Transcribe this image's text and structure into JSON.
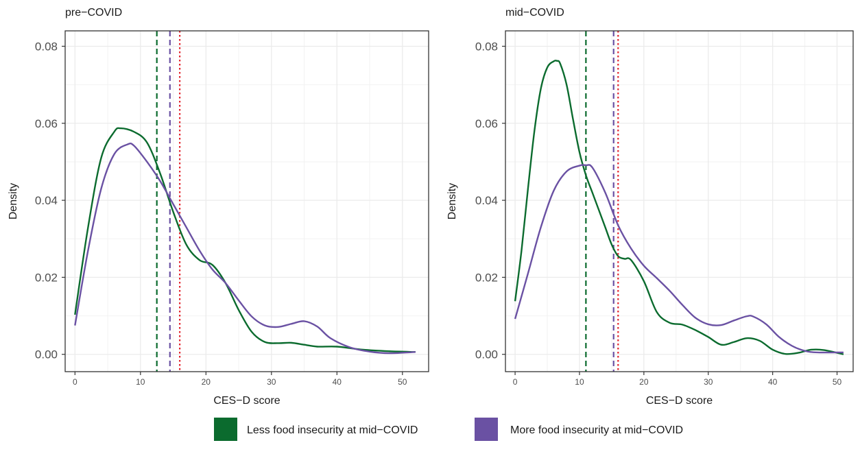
{
  "chart_data": [
    {
      "type": "line",
      "title": "pre−COVID",
      "xlabel": "CES−D score",
      "ylabel": "Density",
      "xlim": [
        -1.5,
        54
      ],
      "ylim": [
        -0.0045,
        0.084
      ],
      "xticks": [
        0,
        10,
        20,
        30,
        40,
        50
      ],
      "xtick_labels": [
        "0",
        "10",
        "20",
        "30",
        "40",
        "50"
      ],
      "yticks": [
        0,
        0.02,
        0.04,
        0.06,
        0.08
      ],
      "ytick_labels": [
        "0.00",
        "0.02",
        "0.04",
        "0.06",
        "0.08"
      ],
      "grid": true,
      "series": [
        {
          "name": "Less food insecurity at mid−COVID",
          "color": "#0b6b2e",
          "x": [
            0,
            2,
            4,
            6,
            7,
            9,
            11,
            13,
            15,
            17,
            19,
            21,
            23,
            25,
            27,
            29,
            31,
            33,
            35,
            37,
            40,
            44,
            48,
            52
          ],
          "y": [
            0.0103,
            0.033,
            0.051,
            0.0578,
            0.0587,
            0.0578,
            0.055,
            0.047,
            0.037,
            0.0285,
            0.0245,
            0.0232,
            0.0185,
            0.0115,
            0.0058,
            0.0032,
            0.0029,
            0.003,
            0.0025,
            0.002,
            0.002,
            0.0012,
            0.0008,
            0.0006
          ]
        },
        {
          "name": "More food insecurity at mid−COVID",
          "color": "#6a51a3",
          "x": [
            0,
            2,
            4,
            6,
            8,
            9,
            11,
            13,
            15,
            17,
            19,
            21,
            23,
            25,
            27,
            29,
            31,
            33,
            35,
            37,
            39,
            42,
            45,
            48,
            52
          ],
          "y": [
            0.0075,
            0.027,
            0.043,
            0.052,
            0.0545,
            0.0542,
            0.05,
            0.045,
            0.039,
            0.033,
            0.027,
            0.022,
            0.0185,
            0.014,
            0.0098,
            0.0075,
            0.0071,
            0.0079,
            0.0086,
            0.0072,
            0.0042,
            0.0018,
            0.0007,
            0.0003,
            0.0006
          ]
        }
      ],
      "vlines": [
        {
          "x": 12.5,
          "color": "#0b6b2e",
          "style": "dashed"
        },
        {
          "x": 14.5,
          "color": "#6a51a3",
          "style": "dashed"
        },
        {
          "x": 16,
          "color": "#e3232c",
          "style": "dotted"
        }
      ]
    },
    {
      "type": "line",
      "title": "mid−COVID",
      "xlabel": "CES−D score",
      "ylabel": "Density",
      "xlim": [
        -1.5,
        52.5
      ],
      "ylim": [
        -0.0045,
        0.084
      ],
      "xticks": [
        0,
        10,
        20,
        30,
        40,
        50
      ],
      "xtick_labels": [
        "0",
        "10",
        "20",
        "30",
        "40",
        "50"
      ],
      "yticks": [
        0,
        0.02,
        0.04,
        0.06,
        0.08
      ],
      "ytick_labels": [
        "0.00",
        "0.02",
        "0.04",
        "0.06",
        "0.08"
      ],
      "grid": true,
      "series": [
        {
          "name": "Less food insecurity at mid−COVID",
          "color": "#0b6b2e",
          "x": [
            0,
            1,
            2,
            3,
            4,
            5,
            6,
            6.5,
            7,
            8,
            9,
            10,
            11,
            12,
            13,
            14,
            15,
            16,
            17,
            18,
            20,
            22,
            24,
            26,
            28,
            30,
            32,
            34,
            36,
            38,
            40,
            42,
            44,
            46,
            48,
            51
          ],
          "y": [
            0.0138,
            0.027,
            0.043,
            0.058,
            0.069,
            0.0745,
            0.0761,
            0.0762,
            0.0755,
            0.07,
            0.061,
            0.0525,
            0.0465,
            0.042,
            0.0375,
            0.033,
            0.0285,
            0.0255,
            0.0248,
            0.0245,
            0.019,
            0.011,
            0.0082,
            0.0077,
            0.0063,
            0.0045,
            0.0025,
            0.0032,
            0.0042,
            0.0035,
            0.0012,
            0.0001,
            0.0004,
            0.0012,
            0.0011,
            0.0
          ]
        },
        {
          "name": "More food insecurity at mid−COVID",
          "color": "#6a51a3",
          "x": [
            0,
            2,
            4,
            6,
            8,
            10,
            11,
            12,
            14,
            16,
            18,
            20,
            22,
            24,
            26,
            28,
            30,
            32,
            34,
            36,
            37,
            39,
            41,
            43,
            45,
            47,
            51
          ],
          "y": [
            0.0092,
            0.021,
            0.033,
            0.0425,
            0.0475,
            0.049,
            0.0491,
            0.0485,
            0.042,
            0.0335,
            0.0275,
            0.023,
            0.0198,
            0.0165,
            0.0128,
            0.0095,
            0.0078,
            0.0076,
            0.0088,
            0.0099,
            0.0098,
            0.0078,
            0.0045,
            0.0022,
            0.0009,
            0.0005,
            0.0005
          ]
        }
      ],
      "vlines": [
        {
          "x": 11,
          "color": "#0b6b2e",
          "style": "dashed"
        },
        {
          "x": 15.3,
          "color": "#6a51a3",
          "style": "dashed"
        },
        {
          "x": 16,
          "color": "#e3232c",
          "style": "dotted"
        }
      ]
    }
  ],
  "legend": {
    "position": "bottom",
    "items": [
      {
        "label": "Less food insecurity at mid−COVID",
        "color": "#0b6b2e"
      },
      {
        "label": "More food insecurity at mid−COVID",
        "color": "#6a51a3"
      }
    ]
  }
}
